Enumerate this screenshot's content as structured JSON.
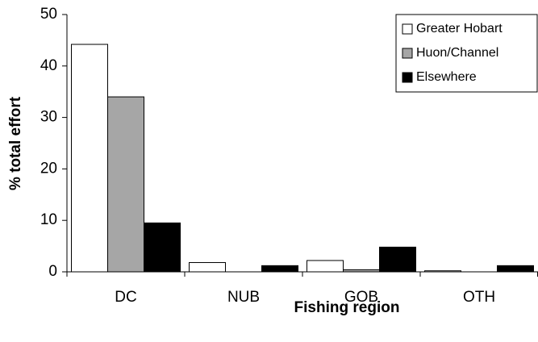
{
  "chart_data": {
    "type": "bar",
    "x_label": "Fishing region",
    "y_label": "% total effort",
    "categories": [
      "DC",
      "NUB",
      "GOB",
      "OTH"
    ],
    "series": [
      {
        "name": "Greater Hobart",
        "color": "#ffffff",
        "values": [
          44.2,
          1.8,
          2.2,
          0.2
        ]
      },
      {
        "name": "Huon/Channel",
        "color": "#a6a6a6",
        "values": [
          34,
          0,
          0.4,
          0
        ]
      },
      {
        "name": "Elsewhere",
        "color": "#000000",
        "values": [
          9.5,
          1.2,
          4.8,
          1.2
        ]
      }
    ],
    "ylim": [
      0,
      50
    ],
    "yticks": [
      0,
      10,
      20,
      30,
      40,
      50
    ],
    "legend": "top-right"
  }
}
